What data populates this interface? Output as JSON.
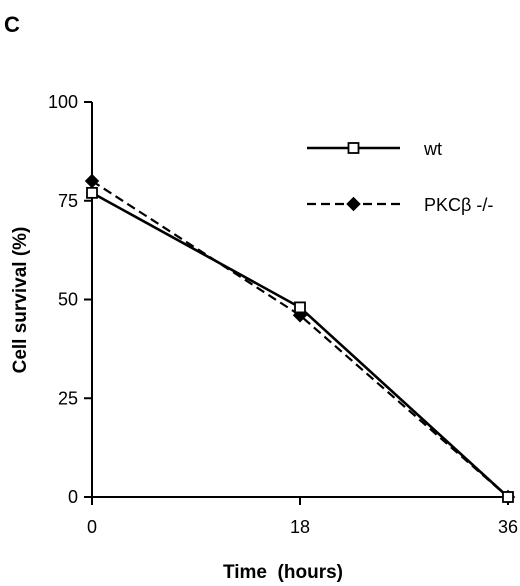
{
  "panel_label": "C",
  "chart_data": {
    "type": "line",
    "title": "",
    "xlabel": "Time  (hours)",
    "ylabel": "Cell survival (%)",
    "x": [
      0,
      18,
      36
    ],
    "x_ticks": [
      0,
      18,
      36
    ],
    "y_ticks": [
      0,
      25,
      50,
      75,
      100
    ],
    "xlim": [
      0,
      36
    ],
    "ylim": [
      0,
      100
    ],
    "grid": false,
    "legend_position": "top-right",
    "series": [
      {
        "name": "wt",
        "values": [
          77,
          48,
          0
        ],
        "line": "solid",
        "marker": "open-square",
        "color": "#000000"
      },
      {
        "name": "PKCβ -/-",
        "values": [
          80,
          46,
          0
        ],
        "line": "dashed",
        "marker": "filled-diamond",
        "color": "#000000"
      }
    ]
  }
}
